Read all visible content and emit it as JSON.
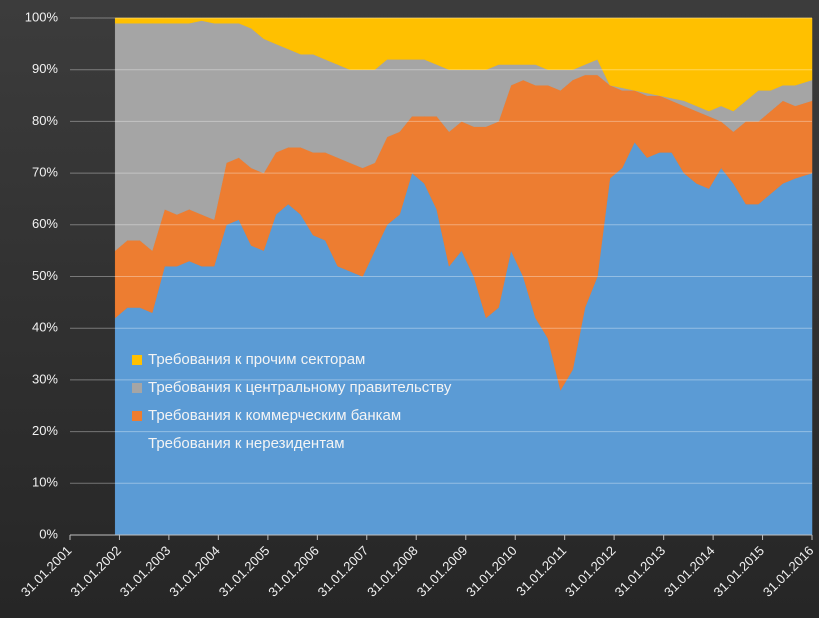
{
  "chart_data": {
    "type": "stacked_area",
    "x": [
      "31.12.2001",
      "31.03.2002",
      "30.06.2002",
      "30.09.2002",
      "31.12.2002",
      "31.03.2003",
      "30.06.2003",
      "30.09.2003",
      "31.12.2003",
      "31.03.2004",
      "30.06.2004",
      "30.09.2004",
      "31.12.2004",
      "31.03.2005",
      "30.06.2005",
      "30.09.2005",
      "31.12.2005",
      "31.03.2006",
      "30.06.2006",
      "30.09.2006",
      "31.12.2006",
      "31.03.2007",
      "30.06.2007",
      "30.09.2007",
      "31.12.2007",
      "31.03.2008",
      "30.06.2008",
      "30.09.2008",
      "31.12.2008",
      "31.03.2009",
      "30.06.2009",
      "30.09.2009",
      "31.12.2009",
      "31.03.2010",
      "30.06.2010",
      "30.09.2010",
      "31.12.2010",
      "31.03.2011",
      "30.06.2011",
      "30.09.2011",
      "31.12.2011",
      "31.03.2012",
      "30.06.2012",
      "30.09.2012",
      "31.12.2012",
      "31.03.2013",
      "30.06.2013",
      "30.09.2013",
      "31.12.2013",
      "31.03.2014",
      "30.06.2014",
      "30.09.2014",
      "31.12.2014",
      "31.03.2015",
      "30.06.2015",
      "30.09.2015",
      "31.01.2016"
    ],
    "series": [
      {
        "name": "Требования к нерезидентам",
        "color": "#5b9bd5",
        "values": [
          42,
          44,
          44,
          43,
          52,
          52,
          53,
          52,
          52,
          60,
          61,
          56,
          55,
          62,
          64,
          62,
          58,
          57,
          52,
          51,
          50,
          55,
          60,
          62,
          70,
          68,
          63,
          52,
          55,
          50,
          42,
          44,
          55,
          50,
          42,
          38,
          28,
          32,
          44,
          50,
          69,
          71,
          76,
          73,
          74,
          74,
          70,
          68,
          67,
          71,
          68,
          64,
          64,
          66,
          68,
          69,
          70
        ]
      },
      {
        "name": "Требования к коммерческим банкам",
        "color": "#ed7d31",
        "values": [
          13,
          13,
          13,
          12,
          11,
          10,
          10,
          10,
          9,
          12,
          12,
          15,
          15,
          12,
          11,
          13,
          16,
          17,
          21,
          21,
          21,
          17,
          17,
          16,
          11,
          13,
          18,
          26,
          25,
          29,
          37,
          36,
          32,
          38,
          45,
          49,
          58,
          56,
          45,
          39,
          18,
          15,
          10,
          12,
          11,
          10,
          13,
          14,
          14,
          9,
          10,
          16,
          16,
          16,
          16,
          14,
          14
        ]
      },
      {
        "name": "Требования к центральному правительству",
        "color": "#a5a5a5",
        "values": [
          44,
          42,
          42,
          44,
          36,
          37,
          36,
          37.5,
          38,
          27,
          26,
          27,
          26,
          21,
          19,
          18,
          19,
          18,
          18,
          18,
          19,
          18,
          15,
          14,
          11,
          11,
          10,
          12,
          10,
          11,
          11,
          11,
          4,
          3,
          4,
          3,
          4,
          2,
          2,
          3,
          0,
          0.5,
          0,
          0.5,
          0,
          0.5,
          1,
          1,
          1,
          3,
          4,
          4,
          6,
          4,
          3,
          4,
          4
        ]
      },
      {
        "name": "Требования к прочим секторам",
        "color": "#ffc000",
        "values": [
          1,
          1,
          1,
          1,
          1,
          1,
          1,
          0.5,
          1,
          1,
          1,
          2,
          4,
          5,
          6,
          7,
          7,
          8,
          9,
          10,
          10,
          10,
          8,
          8,
          8,
          8,
          9,
          10,
          10,
          10,
          10,
          9,
          9,
          9,
          9,
          10,
          10,
          10,
          9,
          8,
          13,
          13.5,
          14,
          14.5,
          15,
          15.5,
          16,
          17,
          18,
          17,
          18,
          16,
          14,
          14,
          13,
          13,
          12
        ]
      }
    ],
    "xlim": [
      "31.01.2001",
      "31.01.2016"
    ],
    "xticks": [
      "31.01.2001",
      "31.01.2002",
      "31.01.2003",
      "31.01.2004",
      "31.01.2005",
      "31.01.2006",
      "31.01.2007",
      "31.01.2008",
      "31.01.2009",
      "31.01.2010",
      "31.01.2011",
      "31.01.2012",
      "31.01.2013",
      "31.01.2014",
      "31.01.2015",
      "31.01.2016"
    ],
    "ylim": [
      0,
      100
    ],
    "yticks": [
      {
        "value": 0,
        "label": "0%"
      },
      {
        "value": 10,
        "label": "10%"
      },
      {
        "value": 20,
        "label": "20%"
      },
      {
        "value": 30,
        "label": "30%"
      },
      {
        "value": 40,
        "label": "40%"
      },
      {
        "value": 50,
        "label": "50%"
      },
      {
        "value": 60,
        "label": "60%"
      },
      {
        "value": 70,
        "label": "70%"
      },
      {
        "value": 80,
        "label": "80%"
      },
      {
        "value": 90,
        "label": "90%"
      },
      {
        "value": 100,
        "label": "100%"
      }
    ],
    "grid": true
  }
}
